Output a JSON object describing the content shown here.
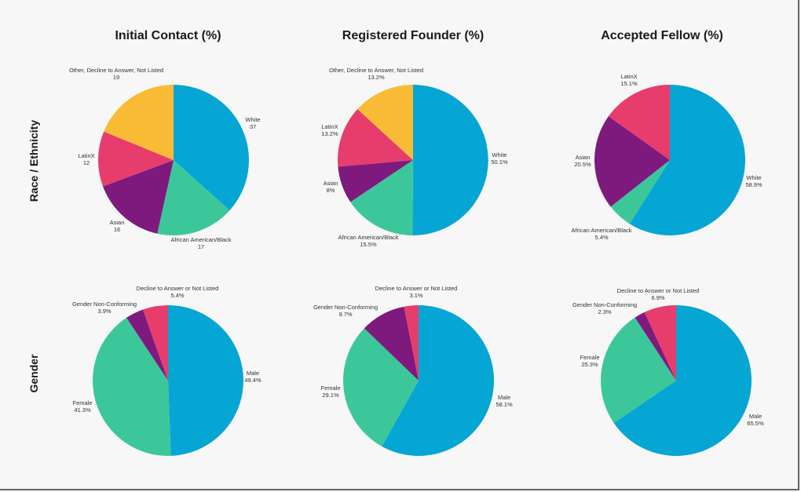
{
  "colors": {
    "blue": "#05a6d4",
    "green": "#3cc79b",
    "purple": "#7e1a7e",
    "pink": "#e63d6c",
    "yellow": "#f9bb36"
  },
  "column_titles": [
    "Initial Contact (%)",
    "Registered Founder (%)",
    "Accepted Fellow (%)"
  ],
  "row_titles": [
    "Race / Ethnicity",
    "Gender"
  ],
  "chart_data": [
    {
      "type": "pie",
      "title": "Initial Contact (%)",
      "row": "Race / Ethnicity",
      "slices": [
        {
          "label": "White",
          "value": 37,
          "display": "37",
          "color": "#05a6d4"
        },
        {
          "label": "African American/Black",
          "value": 17,
          "display": "17",
          "color": "#3cc79b"
        },
        {
          "label": "Asian",
          "value": 16,
          "display": "16",
          "color": "#7e1a7e"
        },
        {
          "label": "LatinX",
          "value": 12,
          "display": "12",
          "color": "#e63d6c"
        },
        {
          "label": "Other, Decline to Answer, Not Listed",
          "value": 19,
          "display": "19",
          "color": "#f9bb36"
        }
      ]
    },
    {
      "type": "pie",
      "title": "Registered Founder (%)",
      "row": "Race / Ethnicity",
      "slices": [
        {
          "label": "White",
          "value": 50.1,
          "display": "50.1%",
          "color": "#05a6d4"
        },
        {
          "label": "African American/Black",
          "value": 15.5,
          "display": "15.5%",
          "color": "#3cc79b"
        },
        {
          "label": "Asian",
          "value": 8,
          "display": "8%",
          "color": "#7e1a7e"
        },
        {
          "label": "LatinX",
          "value": 13.2,
          "display": "13.2%",
          "color": "#e63d6c"
        },
        {
          "label": "Other, Decline to Answer, Not Listed",
          "value": 13.2,
          "display": "13.2%",
          "color": "#f9bb36"
        }
      ]
    },
    {
      "type": "pie",
      "title": "Accepted Fellow (%)",
      "row": "Race / Ethnicity",
      "slices": [
        {
          "label": "White",
          "value": 58.9,
          "display": "58.9%",
          "color": "#05a6d4"
        },
        {
          "label": "African American/Black",
          "value": 5.4,
          "display": "5.4%",
          "color": "#3cc79b"
        },
        {
          "label": "Asian",
          "value": 20.5,
          "display": "20.5%",
          "color": "#7e1a7e"
        },
        {
          "label": "LatinX",
          "value": 15.1,
          "display": "15.1%",
          "color": "#e63d6c"
        }
      ]
    },
    {
      "type": "pie",
      "title": "Initial Contact (%)",
      "row": "Gender",
      "slices": [
        {
          "label": "Male",
          "value": 49.4,
          "display": "49.4%",
          "color": "#05a6d4"
        },
        {
          "label": "Female",
          "value": 41.3,
          "display": "41.3%",
          "color": "#3cc79b"
        },
        {
          "label": "Gender Non-Conforming",
          "value": 3.9,
          "display": "3.9%",
          "color": "#7e1a7e"
        },
        {
          "label": "Decline to Answer or Not Listed",
          "value": 5.4,
          "display": "5.4%",
          "color": "#e63d6c"
        }
      ]
    },
    {
      "type": "pie",
      "title": "Registered Founder (%)",
      "row": "Gender",
      "slices": [
        {
          "label": "Male",
          "value": 58.1,
          "display": "58.1%",
          "color": "#05a6d4"
        },
        {
          "label": "Female",
          "value": 29.1,
          "display": "29.1%",
          "color": "#3cc79b"
        },
        {
          "label": "Gender Non-Conforming",
          "value": 9.7,
          "display": "9.7%",
          "color": "#7e1a7e"
        },
        {
          "label": "Decline to Answer or Not Listed",
          "value": 3.1,
          "display": "3.1%",
          "color": "#e63d6c"
        }
      ]
    },
    {
      "type": "pie",
      "title": "Accepted Fellow (%)",
      "row": "Gender",
      "slices": [
        {
          "label": "Male",
          "value": 65.5,
          "display": "65.5%",
          "color": "#05a6d4"
        },
        {
          "label": "Female",
          "value": 25.3,
          "display": "25.3%",
          "color": "#3cc79b"
        },
        {
          "label": "Gender Non-Conforming",
          "value": 2.3,
          "display": "2.3%",
          "color": "#7e1a7e"
        },
        {
          "label": "Decline to Answer or Not Listed",
          "value": 6.9,
          "display": "6.9%",
          "color": "#e63d6c"
        }
      ]
    }
  ]
}
